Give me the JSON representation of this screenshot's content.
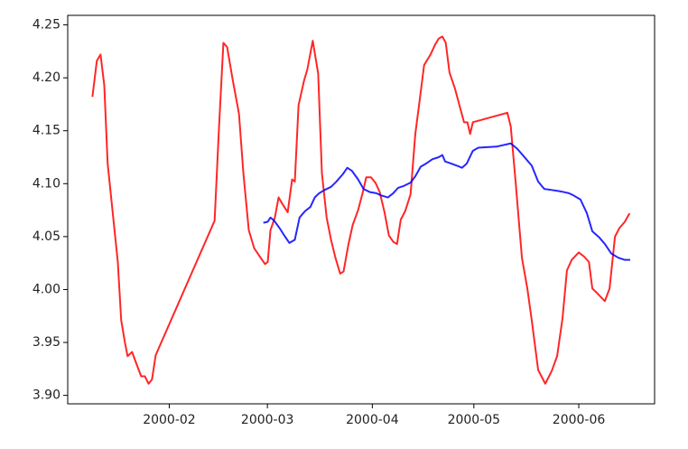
{
  "chart_data": {
    "type": "line",
    "xlim": [
      1,
      174.4
    ],
    "xticks": [
      {
        "value": 31,
        "label": "2000-02"
      },
      {
        "value": 60,
        "label": "2000-03"
      },
      {
        "value": 91,
        "label": "2000-04"
      },
      {
        "value": 121,
        "label": "2000-05"
      },
      {
        "value": 152,
        "label": "2000-06"
      }
    ],
    "ylim": [
      3.892,
      4.259
    ],
    "yticks": [
      {
        "value": 3.9,
        "label": "3.90"
      },
      3.95,
      {
        "value": 4.0,
        "label": "4.00"
      },
      4.05,
      {
        "value": 4.1,
        "label": "4.10"
      },
      4.15,
      {
        "value": 4.2,
        "label": "4.20"
      },
      4.25
    ],
    "grid": false,
    "series": [
      {
        "color": "#ff0000",
        "x": [
          8.3,
          9.6,
          10.7,
          11.8,
          12.8,
          14.7,
          15.8,
          16.8,
          17.9,
          18.7,
          20.0,
          21.4,
          22.7,
          23.8,
          24.9,
          25.9,
          27.0,
          44.4,
          45.7,
          47.0,
          48.1,
          49.7,
          51.6,
          52.9,
          54.5,
          56.1,
          58.0,
          59.3,
          60.1,
          60.9,
          62.2,
          63.3,
          64.4,
          66.0,
          67.3,
          68.1,
          69.2,
          70.8,
          71.8,
          73.4,
          75.0,
          76.1,
          77.5,
          78.8,
          80.1,
          81.5,
          82.5,
          83.9,
          85.2,
          86.8,
          88.2,
          89.2,
          90.6,
          91.9,
          93.2,
          94.6,
          95.9,
          97.2,
          98.3,
          99.4,
          100.7,
          102.3,
          103.7,
          105.0,
          106.3,
          108.2,
          109.5,
          110.6,
          111.7,
          112.7,
          113.8,
          115.4,
          117.0,
          118.1,
          119.1,
          119.9,
          120.7,
          130.9,
          131.9,
          133.3,
          135.2,
          136.8,
          138.1,
          140.0,
          142.1,
          144.0,
          145.6,
          147.2,
          148.5,
          149.9,
          152.0,
          153.6,
          155.0,
          156.0,
          157.6,
          159.7,
          161.1,
          162.7,
          164.0,
          165.6,
          167.0
        ],
        "values": [
          4.182,
          4.216,
          4.222,
          4.193,
          4.119,
          4.06,
          4.026,
          3.971,
          3.95,
          3.937,
          3.941,
          3.929,
          3.918,
          3.918,
          3.911,
          3.915,
          3.938,
          4.065,
          4.153,
          4.233,
          4.229,
          4.199,
          4.166,
          4.11,
          4.056,
          4.039,
          4.03,
          4.024,
          4.026,
          4.056,
          4.068,
          4.087,
          4.081,
          4.073,
          4.104,
          4.102,
          4.174,
          4.197,
          4.208,
          4.235,
          4.204,
          4.11,
          4.068,
          4.047,
          4.03,
          4.015,
          4.017,
          4.042,
          4.061,
          4.075,
          4.092,
          4.106,
          4.106,
          4.101,
          4.092,
          4.073,
          4.051,
          4.045,
          4.043,
          4.066,
          4.074,
          4.09,
          4.147,
          4.179,
          4.212,
          4.222,
          4.231,
          4.237,
          4.239,
          4.233,
          4.205,
          4.19,
          4.171,
          4.158,
          4.158,
          4.147,
          4.158,
          4.167,
          4.154,
          4.103,
          4.03,
          4.001,
          3.971,
          3.924,
          3.911,
          3.923,
          3.937,
          3.973,
          4.018,
          4.028,
          4.035,
          4.031,
          4.026,
          4.001,
          3.996,
          3.989,
          4.001,
          4.05,
          4.058,
          4.064,
          4.072
        ]
      },
      {
        "color": "#0000ff",
        "x": [
          58.8,
          60.1,
          60.9,
          62.0,
          63.6,
          65.2,
          66.5,
          68.1,
          69.5,
          71.1,
          72.7,
          74.0,
          75.3,
          76.9,
          78.8,
          80.4,
          82.3,
          83.6,
          85.0,
          86.8,
          88.4,
          90.3,
          92.2,
          93.5,
          95.6,
          97.2,
          98.6,
          100.4,
          102.3,
          103.7,
          105.3,
          106.9,
          108.7,
          110.6,
          111.7,
          112.5,
          114.3,
          116.0,
          117.5,
          118.9,
          120.7,
          122.3,
          127.7,
          131.9,
          133.8,
          135.7,
          138.1,
          140.0,
          141.8,
          144.0,
          146.1,
          147.7,
          149.1,
          150.4,
          152.5,
          154.4,
          156.0,
          158.1,
          159.7,
          161.6,
          163.7,
          165.6,
          167.2
        ],
        "values": [
          4.063,
          4.064,
          4.068,
          4.065,
          4.058,
          4.05,
          4.044,
          4.047,
          4.068,
          4.074,
          4.078,
          4.087,
          4.091,
          4.094,
          4.097,
          4.102,
          4.109,
          4.115,
          4.112,
          4.104,
          4.095,
          4.092,
          4.091,
          4.089,
          4.087,
          4.091,
          4.096,
          4.098,
          4.101,
          4.107,
          4.116,
          4.119,
          4.123,
          4.125,
          4.127,
          4.121,
          4.119,
          4.117,
          4.115,
          4.119,
          4.131,
          4.134,
          4.135,
          4.138,
          4.133,
          4.126,
          4.117,
          4.102,
          4.095,
          4.094,
          4.093,
          4.092,
          4.091,
          4.089,
          4.085,
          4.072,
          4.055,
          4.049,
          4.043,
          4.034,
          4.03,
          4.028,
          4.028
        ]
      }
    ]
  }
}
